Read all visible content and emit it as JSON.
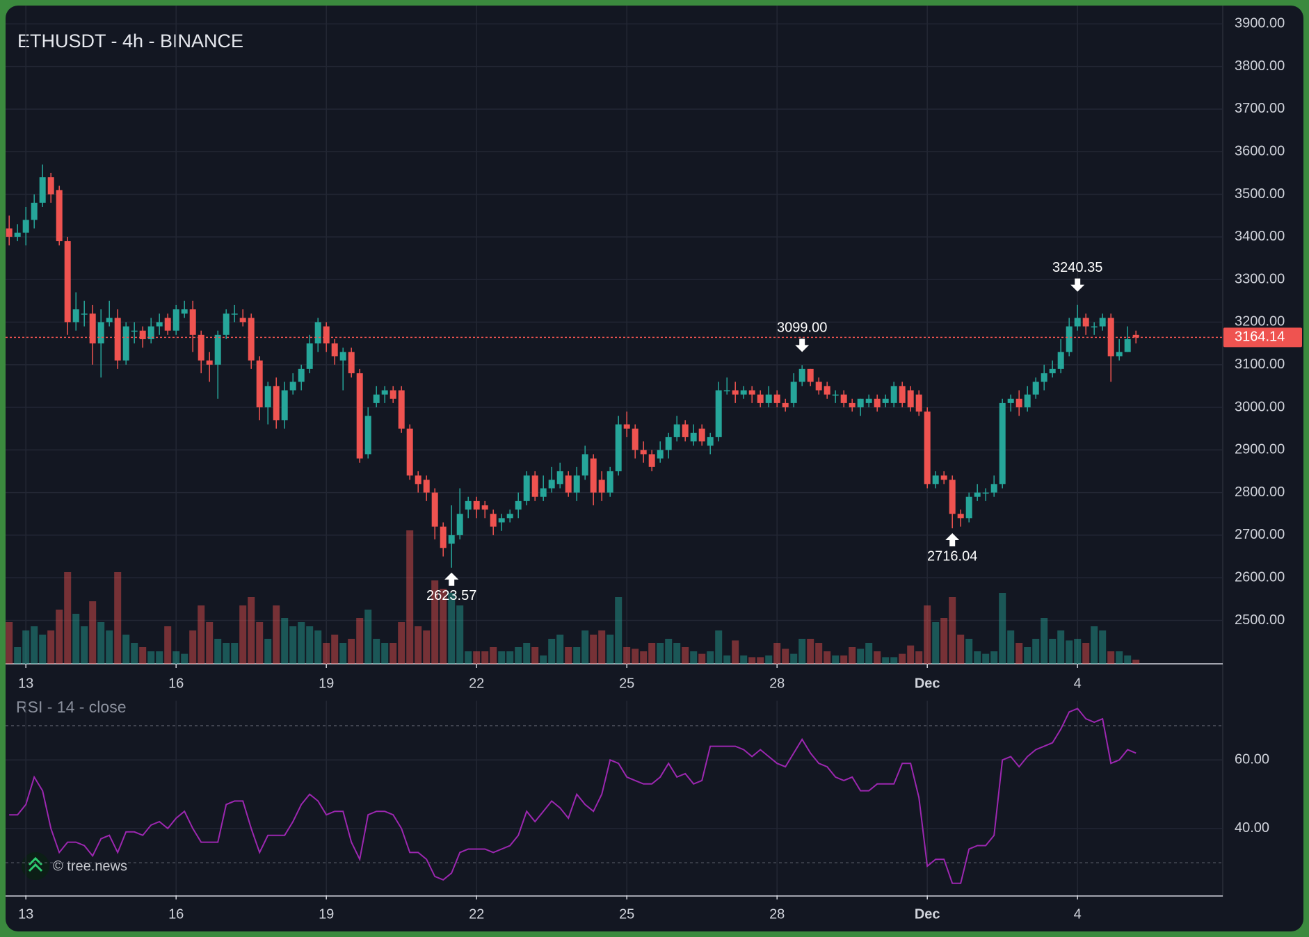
{
  "watermark": "© tree.news",
  "chart_data": [
    {
      "type": "candlestick",
      "title": "ETHUSDT - 4h - BINANCE",
      "up_color": "#26a69a",
      "down_color": "#ef5350",
      "open": [
        3420,
        3400,
        3410,
        3440,
        3480,
        3540,
        3510,
        3390,
        3200,
        3220,
        3220,
        3150,
        3200,
        3210,
        3110,
        3180,
        3180,
        3160,
        3190,
        3210,
        3180,
        3220,
        3230,
        3170,
        3110,
        3100,
        3170,
        3220,
        3210,
        3210,
        3110,
        3000,
        3050,
        2970,
        3040,
        3060,
        3090,
        3150,
        3190,
        3150,
        3110,
        3130,
        3080,
        2890,
        3010,
        3030,
        3040,
        3040,
        2950,
        2840,
        2830,
        2800,
        2720,
        2680,
        2700,
        2760,
        2780,
        2770,
        2750,
        2730,
        2740,
        2760,
        2780,
        2840,
        2790,
        2810,
        2820,
        2840,
        2800,
        2840,
        2880,
        2830,
        2800,
        2850,
        2960,
        2950,
        2900,
        2890,
        2880,
        2900,
        2930,
        2960,
        2920,
        2950,
        2910,
        2930,
        3040,
        3040,
        3030,
        3040,
        3030,
        3010,
        3030,
        3010,
        3010,
        3060,
        3090,
        3060,
        3050,
        3030,
        3030,
        3010,
        3000,
        3010,
        3020,
        3010,
        3010,
        3050,
        3040,
        3030,
        2990,
        2820,
        2840,
        2830,
        2750,
        2740,
        2790,
        2800,
        2800,
        2820,
        3010,
        3020,
        3000,
        3030,
        3060,
        3080,
        3090,
        3130,
        3190,
        3210,
        3190,
        3190,
        3210,
        3120,
        3130,
        3170
      ],
      "high": [
        3450,
        3430,
        3470,
        3500,
        3570,
        3550,
        3520,
        3400,
        3270,
        3250,
        3240,
        3230,
        3250,
        3230,
        3200,
        3200,
        3190,
        3210,
        3220,
        3220,
        3240,
        3250,
        3250,
        3180,
        3130,
        3180,
        3230,
        3240,
        3230,
        3220,
        3120,
        3060,
        3070,
        3060,
        3080,
        3100,
        3170,
        3210,
        3200,
        3160,
        3140,
        3140,
        3090,
        3000,
        3050,
        3050,
        3050,
        3050,
        2960,
        2850,
        2840,
        2810,
        2730,
        2770,
        2810,
        2790,
        2790,
        2780,
        2760,
        2750,
        2760,
        2800,
        2850,
        2850,
        2840,
        2860,
        2870,
        2850,
        2860,
        2910,
        2890,
        2850,
        2860,
        2980,
        2990,
        2960,
        2920,
        2900,
        2920,
        2940,
        2980,
        2970,
        2960,
        2960,
        2940,
        3060,
        3070,
        3060,
        3050,
        3050,
        3040,
        3050,
        3040,
        3020,
        3080,
        3099,
        3090,
        3070,
        3060,
        3040,
        3040,
        3020,
        3020,
        3030,
        3030,
        3030,
        3060,
        3060,
        3050,
        3040,
        3000,
        2850,
        2850,
        2840,
        2760,
        2800,
        2820,
        2810,
        2840,
        3020,
        3030,
        3040,
        3050,
        3070,
        3100,
        3110,
        3160,
        3210,
        3240.35,
        3220,
        3200,
        3220,
        3220,
        3160,
        3190,
        3180
      ],
      "low": [
        3380,
        3390,
        3380,
        3420,
        3470,
        3480,
        3380,
        3170,
        3180,
        3190,
        3100,
        3070,
        3190,
        3090,
        3100,
        3150,
        3140,
        3150,
        3170,
        3170,
        3170,
        3210,
        3130,
        3080,
        3060,
        3020,
        3160,
        3200,
        3190,
        3090,
        2970,
        2960,
        2950,
        2950,
        3030,
        3040,
        3080,
        3130,
        3130,
        3100,
        3040,
        3070,
        2870,
        2880,
        3000,
        3010,
        3010,
        2940,
        2830,
        2800,
        2780,
        2690,
        2650,
        2623.57,
        2690,
        2740,
        2740,
        2740,
        2700,
        2710,
        2730,
        2740,
        2770,
        2780,
        2780,
        2800,
        2810,
        2790,
        2780,
        2830,
        2770,
        2780,
        2790,
        2840,
        2930,
        2880,
        2870,
        2850,
        2870,
        2880,
        2920,
        2920,
        2910,
        2910,
        2890,
        2920,
        3030,
        3010,
        3020,
        3010,
        3000,
        3000,
        3000,
        2990,
        3000,
        3050,
        3050,
        3030,
        3020,
        3010,
        3000,
        2990,
        2980,
        3000,
        2990,
        3000,
        3000,
        3000,
        2990,
        2980,
        2810,
        2810,
        2820,
        2716.04,
        2720,
        2730,
        2780,
        2780,
        2790,
        2810,
        2990,
        2980,
        2990,
        3020,
        3040,
        3070,
        3080,
        3120,
        3180,
        3170,
        3170,
        3180,
        3060,
        3110,
        3130,
        3150
      ],
      "close": [
        3400,
        3410,
        3440,
        3480,
        3540,
        3500,
        3390,
        3200,
        3230,
        3220,
        3150,
        3200,
        3210,
        3110,
        3190,
        3180,
        3160,
        3190,
        3200,
        3180,
        3230,
        3230,
        3170,
        3110,
        3100,
        3170,
        3220,
        3220,
        3200,
        3110,
        3000,
        3050,
        2970,
        3040,
        3060,
        3090,
        3150,
        3200,
        3150,
        3120,
        3130,
        3080,
        2880,
        2980,
        3030,
        3040,
        3020,
        2950,
        2840,
        2820,
        2800,
        2720,
        2670,
        2700,
        2750,
        2780,
        2760,
        2760,
        2720,
        2740,
        2750,
        2780,
        2840,
        2790,
        2810,
        2830,
        2850,
        2800,
        2840,
        2890,
        2800,
        2800,
        2850,
        2960,
        2950,
        2900,
        2890,
        2860,
        2900,
        2930,
        2960,
        2930,
        2940,
        2920,
        2930,
        3040,
        3040,
        3030,
        3040,
        3030,
        3010,
        3030,
        3010,
        3000,
        3060,
        3090,
        3060,
        3040,
        3030,
        3030,
        3010,
        3000,
        3020,
        3020,
        3000,
        3020,
        3050,
        3010,
        3000,
        2990,
        2820,
        2840,
        2830,
        2750,
        2740,
        2790,
        2800,
        2800,
        2820,
        3010,
        3020,
        3000,
        3030,
        3060,
        3080,
        3090,
        3130,
        3190,
        3210,
        3190,
        3190,
        3210,
        3120,
        3130,
        3160,
        3164.14
      ],
      "volume": [
        50,
        20,
        40,
        45,
        35,
        40,
        65,
        110,
        60,
        45,
        75,
        50,
        40,
        110,
        35,
        25,
        20,
        15,
        15,
        45,
        15,
        12,
        40,
        70,
        50,
        30,
        25,
        25,
        70,
        80,
        50,
        30,
        70,
        55,
        45,
        50,
        45,
        40,
        25,
        35,
        25,
        30,
        55,
        65,
        30,
        25,
        25,
        50,
        160,
        45,
        40,
        100,
        90,
        85,
        70,
        15,
        15,
        15,
        20,
        15,
        15,
        20,
        25,
        20,
        10,
        30,
        35,
        20,
        20,
        40,
        35,
        40,
        35,
        80,
        20,
        18,
        15,
        25,
        25,
        30,
        25,
        20,
        15,
        12,
        15,
        40,
        10,
        28,
        10,
        8,
        8,
        10,
        25,
        18,
        12,
        30,
        30,
        25,
        15,
        10,
        10,
        20,
        18,
        25,
        15,
        8,
        8,
        12,
        22,
        15,
        70,
        50,
        55,
        80,
        35,
        30,
        15,
        12,
        15,
        85,
        40,
        25,
        20,
        30,
        55,
        30,
        40,
        28,
        30,
        25,
        45,
        40,
        15,
        15,
        10,
        5
      ],
      "ylim": [
        2398,
        3943
      ],
      "yticks": [
        {
          "value": 2500,
          "label": "2500.00"
        },
        {
          "value": 2600,
          "label": "2600.00"
        },
        {
          "value": 2700,
          "label": "2700.00"
        },
        {
          "value": 2800,
          "label": "2800.00"
        },
        {
          "value": 2900,
          "label": "2900.00"
        },
        {
          "value": 3000,
          "label": "3000.00"
        },
        {
          "value": 3100,
          "label": "3100.00"
        },
        {
          "value": 3200,
          "label": "3200.00"
        },
        {
          "value": 3300,
          "label": "3300.00"
        },
        {
          "value": 3400,
          "label": "3400.00"
        },
        {
          "value": 3500,
          "label": "3500.00"
        },
        {
          "value": 3600,
          "label": "3600.00"
        },
        {
          "value": 3700,
          "label": "3700.00"
        },
        {
          "value": 3800,
          "label": "3800.00"
        },
        {
          "value": 3900,
          "label": "3900.00"
        }
      ],
      "xticks": [
        {
          "value": 2,
          "label": "13"
        },
        {
          "value": 20,
          "label": "16"
        },
        {
          "value": 38,
          "label": "19"
        },
        {
          "value": 56,
          "label": "22"
        },
        {
          "value": 74,
          "label": "25"
        },
        {
          "value": 92,
          "label": "28"
        },
        {
          "value": 110,
          "label": "Dec"
        },
        {
          "value": 128,
          "label": "4"
        }
      ],
      "annotations": [
        {
          "candle": 53,
          "label": "2623.57",
          "direction": "up"
        },
        {
          "candle": 95,
          "label": "3099.00",
          "direction": "down"
        },
        {
          "candle": 113,
          "label": "2716.04",
          "direction": "up"
        },
        {
          "candle": 128,
          "label": "3240.35",
          "direction": "down"
        }
      ],
      "grid": true
    },
    {
      "type": "line",
      "title": "RSI - 14 - close",
      "color": "#9c27b0",
      "values": [
        44,
        44,
        47,
        55,
        51,
        40,
        33,
        36,
        36,
        35,
        32,
        37,
        38,
        33,
        39,
        39,
        38,
        41,
        42,
        40,
        43,
        45,
        40,
        36,
        36,
        36,
        47,
        48,
        48,
        40,
        33,
        38,
        38,
        38,
        42,
        47,
        50,
        48,
        44,
        45,
        45,
        36,
        31,
        44,
        45,
        45,
        44,
        40,
        33,
        33,
        31,
        26,
        25,
        27,
        33,
        34,
        34,
        34,
        33,
        34,
        35,
        38,
        45,
        42,
        45,
        48,
        46,
        43,
        50,
        47,
        45,
        50,
        60,
        59,
        55,
        54,
        53,
        53,
        55,
        59,
        55,
        56,
        53,
        54,
        64,
        64,
        64,
        64,
        63,
        61,
        63,
        61,
        59,
        58,
        62,
        66,
        62,
        59,
        58,
        55,
        54,
        55,
        51,
        51,
        53,
        53,
        53,
        59,
        59,
        49,
        29,
        31,
        31,
        24,
        24,
        34,
        35,
        35,
        38,
        60,
        61,
        58,
        61,
        63,
        64,
        65,
        69,
        74,
        75,
        72,
        71,
        72,
        59,
        60,
        63,
        62
      ],
      "ylim": [
        20.5,
        77.3
      ],
      "yticks": [
        {
          "value": 40,
          "label": "40.00"
        },
        {
          "value": 60,
          "label": "60.00"
        }
      ],
      "bands": [
        30,
        70
      ],
      "xticks": [
        {
          "value": 2,
          "label": "13"
        },
        {
          "value": 20,
          "label": "16"
        },
        {
          "value": 38,
          "label": "19"
        },
        {
          "value": 56,
          "label": "22"
        },
        {
          "value": 74,
          "label": "25"
        },
        {
          "value": 92,
          "label": "28"
        },
        {
          "value": 110,
          "label": "Dec"
        },
        {
          "value": 128,
          "label": "4"
        }
      ],
      "grid": true
    }
  ]
}
